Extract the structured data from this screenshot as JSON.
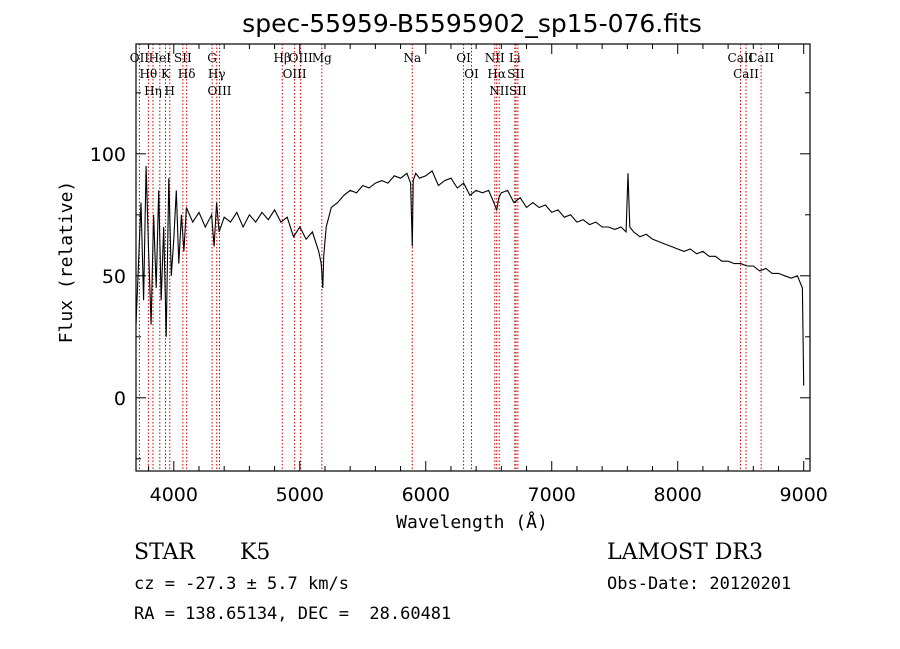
{
  "chart_data": {
    "type": "line",
    "title": "spec-55959-B5595902_sp15-076.fits",
    "xlabel": "Wavelength (Å)",
    "ylabel": "Flux (relative)",
    "xlim": [
      3700,
      9050
    ],
    "ylim": [
      -30,
      145
    ],
    "x_ticks": [
      4000,
      5000,
      6000,
      7000,
      8000,
      9000
    ],
    "y_ticks": [
      0,
      50,
      100
    ],
    "series": [
      {
        "name": "flux",
        "x": [
          3700,
          3720,
          3740,
          3760,
          3780,
          3800,
          3820,
          3840,
          3860,
          3880,
          3900,
          3920,
          3940,
          3960,
          3980,
          4000,
          4020,
          4040,
          4060,
          4080,
          4100,
          4150,
          4200,
          4250,
          4300,
          4320,
          4340,
          4360,
          4400,
          4450,
          4500,
          4550,
          4600,
          4650,
          4700,
          4750,
          4800,
          4850,
          4900,
          4950,
          5000,
          5050,
          5100,
          5150,
          5170,
          5183,
          5190,
          5210,
          5250,
          5300,
          5350,
          5400,
          5450,
          5500,
          5550,
          5600,
          5650,
          5700,
          5750,
          5800,
          5850,
          5880,
          5893,
          5900,
          5920,
          5950,
          6000,
          6050,
          6100,
          6150,
          6200,
          6250,
          6300,
          6350,
          6400,
          6450,
          6500,
          6540,
          6563,
          6580,
          6600,
          6650,
          6700,
          6750,
          6800,
          6850,
          6900,
          6950,
          7000,
          7050,
          7100,
          7150,
          7200,
          7250,
          7300,
          7350,
          7400,
          7450,
          7500,
          7550,
          7590,
          7605,
          7620,
          7650,
          7700,
          7750,
          7800,
          7850,
          7900,
          7950,
          8000,
          8050,
          8100,
          8150,
          8200,
          8250,
          8300,
          8350,
          8400,
          8450,
          8500,
          8550,
          8600,
          8650,
          8700,
          8750,
          8800,
          8850,
          8900,
          8950,
          8990,
          9000
        ],
        "y": [
          30,
          55,
          80,
          40,
          95,
          60,
          30,
          75,
          45,
          85,
          40,
          70,
          25,
          90,
          50,
          65,
          85,
          55,
          75,
          60,
          78,
          72,
          76,
          70,
          75,
          62,
          80,
          68,
          74,
          72,
          76,
          70,
          75,
          72,
          76,
          73,
          77,
          72,
          74,
          66,
          70,
          65,
          68,
          60,
          55,
          45,
          58,
          70,
          78,
          80,
          83,
          85,
          84,
          87,
          86,
          88,
          89,
          88,
          91,
          90,
          92,
          88,
          62,
          89,
          92,
          90,
          91,
          93,
          87,
          89,
          90,
          86,
          88,
          83,
          85,
          84,
          85,
          80,
          77,
          82,
          84,
          85,
          80,
          82,
          78,
          80,
          78,
          79,
          76,
          77,
          74,
          75,
          72,
          73,
          71,
          72,
          70,
          70,
          69,
          70,
          68,
          92,
          70,
          68,
          66,
          67,
          65,
          64,
          63,
          62,
          61,
          60,
          61,
          59,
          60,
          58,
          58,
          56,
          56,
          55,
          55,
          54,
          54,
          52,
          53,
          51,
          51,
          50,
          49,
          50,
          45,
          5
        ]
      }
    ],
    "line_markers": [
      {
        "name": "OII",
        "wavelength": 3727
      },
      {
        "name": "Hθ",
        "wavelength": 3798
      },
      {
        "name": "Hη",
        "wavelength": 3835
      },
      {
        "name": "HeI",
        "wavelength": 3889
      },
      {
        "name": "K",
        "wavelength": 3934
      },
      {
        "name": "H",
        "wavelength": 3968
      },
      {
        "name": "SII",
        "wavelength": 4072
      },
      {
        "name": "Hδ",
        "wavelength": 4102
      },
      {
        "name": "G",
        "wavelength": 4304
      },
      {
        "name": "Hγ",
        "wavelength": 4341
      },
      {
        "name": "OIII",
        "wavelength": 4363
      },
      {
        "name": "Hβ",
        "wavelength": 4861
      },
      {
        "name": "OIII",
        "wavelength": 4959
      },
      {
        "name": "OIII",
        "wavelength": 5007
      },
      {
        "name": "Mg",
        "wavelength": 5175
      },
      {
        "name": "Na",
        "wavelength": 5893
      },
      {
        "name": "OI",
        "wavelength": 6300
      },
      {
        "name": "OI",
        "wavelength": 6363
      },
      {
        "name": "NII",
        "wavelength": 6548
      },
      {
        "name": "Hα",
        "wavelength": 6563
      },
      {
        "name": "NII",
        "wavelength": 6583
      },
      {
        "name": "Li",
        "wavelength": 6707
      },
      {
        "name": "SII",
        "wavelength": 6716
      },
      {
        "name": "SII",
        "wavelength": 6731
      },
      {
        "name": "CaII",
        "wavelength": 8498
      },
      {
        "name": "CaII",
        "wavelength": 8542
      },
      {
        "name": "CaII",
        "wavelength": 8662
      }
    ],
    "marker_color": "#cc0000"
  },
  "info": {
    "object_class": "STAR",
    "subclass": "K5",
    "survey": "LAMOST DR3",
    "cz": "cz = -27.3 ± 5.7 km/s",
    "obs_date": "Obs-Date: 20120201",
    "coords": "RA = 138.65134, DEC =  28.60481"
  }
}
